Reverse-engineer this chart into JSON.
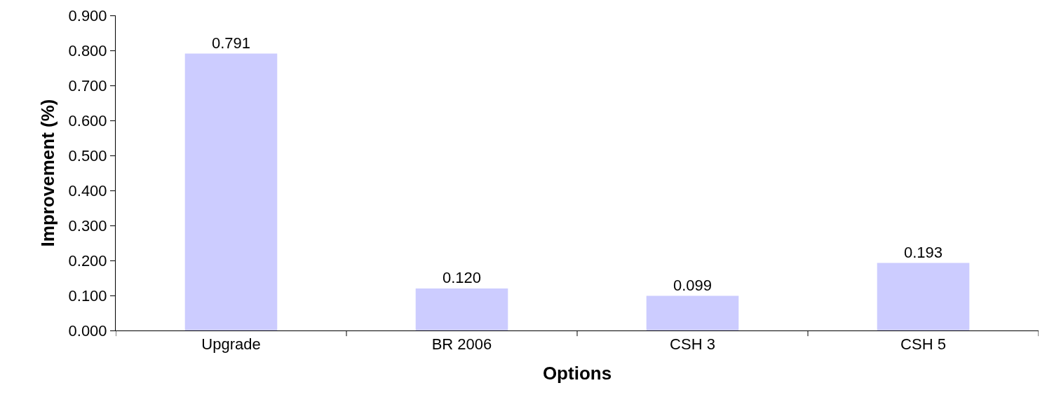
{
  "chart_data": {
    "type": "bar",
    "xlabel": "Options",
    "ylabel": "Improvement (%)",
    "categories": [
      "Upgrade",
      "BR 2006",
      "CSH 3",
      "CSH 5"
    ],
    "values": [
      0.791,
      0.12,
      0.099,
      0.193
    ],
    "color": "#ccccff",
    "ylim": [
      0,
      0.9
    ],
    "yticks": [
      {
        "value": 0,
        "label": "0.000"
      },
      {
        "value": 0.1,
        "label": "0.100"
      },
      {
        "value": 0.2,
        "label": "0.200"
      },
      {
        "value": 0.3,
        "label": "0.300"
      },
      {
        "value": 0.4,
        "label": "0.400"
      },
      {
        "value": 0.5,
        "label": "0.500"
      },
      {
        "value": 0.6,
        "label": "0.600"
      },
      {
        "value": 0.7,
        "label": "0.700"
      },
      {
        "value": 0.8,
        "label": "0.800"
      },
      {
        "value": 0.9,
        "label": "0.900"
      }
    ],
    "value_labels": [
      "0.791",
      "0.120",
      "0.099",
      "0.193"
    ]
  }
}
